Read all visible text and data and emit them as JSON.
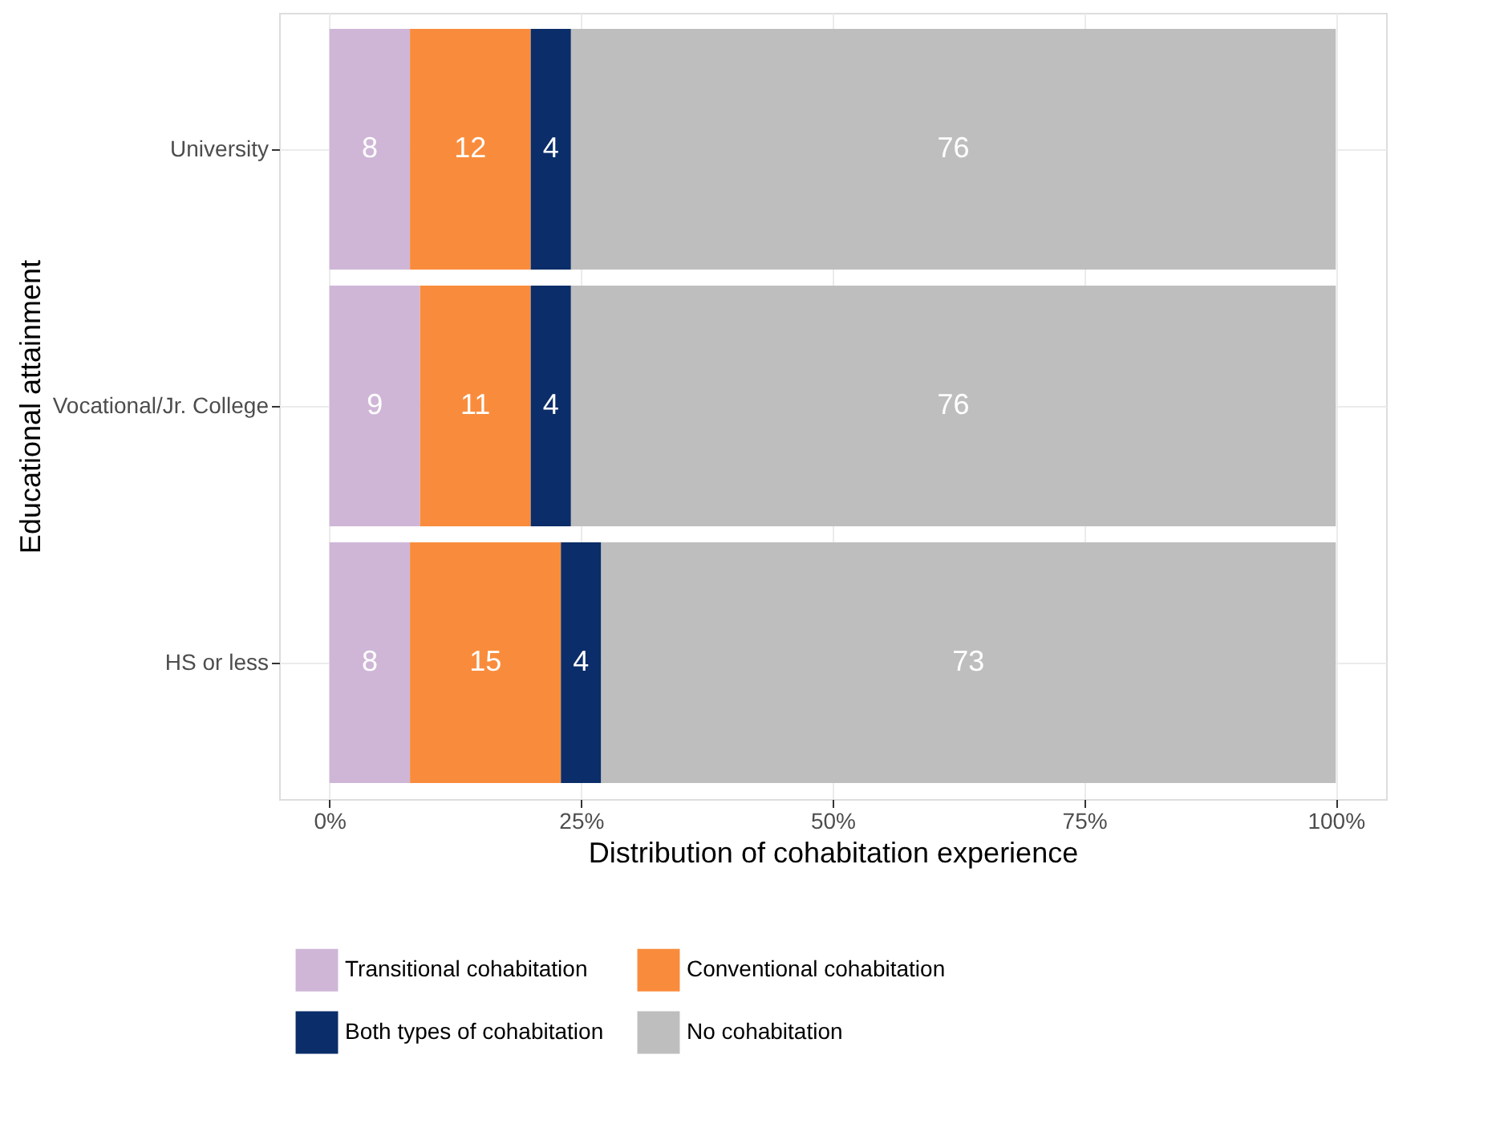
{
  "chart_data": {
    "type": "bar",
    "orientation": "horizontal",
    "stacked": true,
    "xlabel": "Distribution of cohabitation experience",
    "ylabel": "Educational attainment",
    "categories": [
      "University",
      "Vocational/Jr. College",
      "HS or less"
    ],
    "series": [
      {
        "name": "Transitional cohabitation",
        "color": "#cfb6d7",
        "values": [
          8,
          9,
          8
        ]
      },
      {
        "name": "Conventional cohabitation",
        "color": "#f98c3c",
        "values": [
          12,
          11,
          15
        ]
      },
      {
        "name": "Both types of cohabitation",
        "color": "#0b2d69",
        "values": [
          4,
          4,
          4
        ]
      },
      {
        "name": "No cohabitation",
        "color": "#bebebe",
        "values": [
          76,
          76,
          73
        ]
      }
    ],
    "xlim": [
      -5,
      105
    ],
    "xticks": [
      {
        "value": 0,
        "label": "0%"
      },
      {
        "value": 25,
        "label": "25%"
      },
      {
        "value": 50,
        "label": "50%"
      },
      {
        "value": 75,
        "label": "75%"
      },
      {
        "value": 100,
        "label": "100%"
      }
    ],
    "data_labels": true,
    "grid": true,
    "legend": "bottom"
  }
}
